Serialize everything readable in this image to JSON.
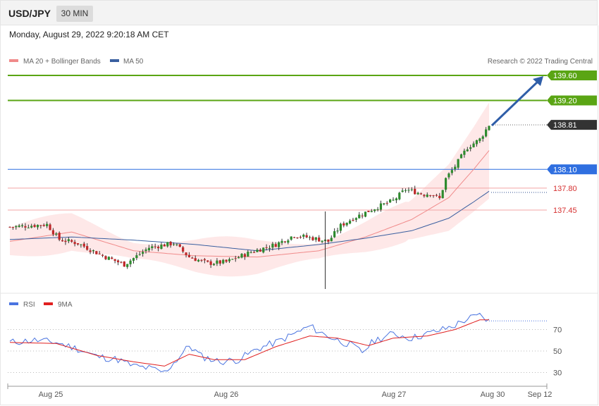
{
  "header": {
    "symbol": "USD/JPY",
    "timeframe": "30 MIN"
  },
  "datetime": "Monday, August 29, 2022 9:20:18 AM CET",
  "copyright": "Research © 2022 Trading Central",
  "colors": {
    "ma20": "#f08a8a",
    "ma50": "#3a5fa0",
    "band": "#fde0e0",
    "up": "#2e8b2e",
    "down": "#c0282a",
    "resistance": "#5aa514",
    "pivot": "#2f6fe0",
    "support": "#e05555",
    "current": "#333333",
    "rsi": "#4a74e0",
    "rsi_ma": "#e02020"
  },
  "chart_data": [
    {
      "type": "candlestick",
      "legend": [
        "MA 20 + Bollinger Bands",
        "MA 50"
      ],
      "x_ticks": [
        "Aug 25",
        "Aug 26",
        "Aug 27",
        "Aug 30",
        "Sep 12"
      ],
      "y_range": [
        136.2,
        139.9
      ],
      "levels": [
        {
          "value": 139.6,
          "label": "139.60",
          "kind": "resistance"
        },
        {
          "value": 139.2,
          "label": "139.20",
          "kind": "resistance"
        },
        {
          "value": 138.81,
          "label": "138.81",
          "kind": "current"
        },
        {
          "value": 138.1,
          "label": "138.10",
          "kind": "pivot"
        },
        {
          "value": 137.8,
          "label": "137.80",
          "kind": "support"
        },
        {
          "value": 137.45,
          "label": "137.45",
          "kind": "support"
        }
      ],
      "close_anchors": [
        [
          0,
          137.18
        ],
        [
          12,
          137.22
        ],
        [
          16,
          136.98
        ],
        [
          22,
          136.92
        ],
        [
          30,
          136.72
        ],
        [
          37,
          136.58
        ],
        [
          45,
          136.85
        ],
        [
          53,
          136.92
        ],
        [
          58,
          136.7
        ],
        [
          64,
          136.6
        ],
        [
          70,
          136.62
        ],
        [
          78,
          136.78
        ],
        [
          86,
          136.9
        ],
        [
          92,
          137.05
        ],
        [
          98,
          137.0
        ],
        [
          103,
          136.95
        ],
        [
          107,
          137.2
        ],
        [
          111,
          137.32
        ],
        [
          118,
          137.48
        ],
        [
          124,
          137.6
        ],
        [
          128,
          137.78
        ],
        [
          134,
          137.7
        ],
        [
          136,
          137.72
        ],
        [
          139,
          137.63
        ],
        [
          141,
          137.95
        ],
        [
          144,
          138.15
        ],
        [
          148,
          138.45
        ],
        [
          152,
          138.58
        ],
        [
          155,
          138.81
        ]
      ],
      "ma20_anchors": [
        [
          0,
          136.95
        ],
        [
          20,
          137.1
        ],
        [
          40,
          136.8
        ],
        [
          60,
          136.72
        ],
        [
          80,
          136.7
        ],
        [
          100,
          136.8
        ],
        [
          115,
          137.02
        ],
        [
          130,
          137.3
        ],
        [
          142,
          137.65
        ],
        [
          150,
          138.1
        ],
        [
          155,
          138.4
        ]
      ],
      "ma50_anchors": [
        [
          0,
          136.98
        ],
        [
          20,
          137.02
        ],
        [
          40,
          136.97
        ],
        [
          60,
          136.9
        ],
        [
          80,
          136.8
        ],
        [
          100,
          136.9
        ],
        [
          115,
          137.0
        ],
        [
          130,
          137.12
        ],
        [
          142,
          137.32
        ],
        [
          150,
          137.58
        ],
        [
          155,
          137.75
        ]
      ],
      "candle_count": 156
    },
    {
      "type": "line",
      "legend": [
        "RSI",
        "9MA"
      ],
      "y_ticks": [
        70,
        50,
        30
      ],
      "y_range": [
        5,
        95
      ],
      "rsi_anchors": [
        [
          0,
          58
        ],
        [
          8,
          60
        ],
        [
          15,
          58
        ],
        [
          22,
          52
        ],
        [
          28,
          45
        ],
        [
          35,
          42
        ],
        [
          40,
          36
        ],
        [
          45,
          34
        ],
        [
          50,
          30
        ],
        [
          54,
          42
        ],
        [
          58,
          55
        ],
        [
          62,
          45
        ],
        [
          68,
          40
        ],
        [
          74,
          42
        ],
        [
          80,
          52
        ],
        [
          86,
          58
        ],
        [
          92,
          66
        ],
        [
          97,
          73
        ],
        [
          102,
          65
        ],
        [
          106,
          60
        ],
        [
          110,
          56
        ],
        [
          114,
          49
        ],
        [
          118,
          60
        ],
        [
          124,
          66
        ],
        [
          130,
          62
        ],
        [
          135,
          66
        ],
        [
          140,
          70
        ],
        [
          144,
          74
        ],
        [
          148,
          80
        ],
        [
          152,
          83
        ],
        [
          155,
          78
        ]
      ],
      "rsi9_anchors": [
        [
          0,
          58
        ],
        [
          15,
          57
        ],
        [
          28,
          46
        ],
        [
          40,
          40
        ],
        [
          50,
          36
        ],
        [
          58,
          47
        ],
        [
          66,
          42
        ],
        [
          76,
          42
        ],
        [
          86,
          54
        ],
        [
          97,
          64
        ],
        [
          106,
          62
        ],
        [
          116,
          55
        ],
        [
          124,
          62
        ],
        [
          135,
          64
        ],
        [
          144,
          70
        ],
        [
          152,
          79
        ],
        [
          155,
          79
        ]
      ]
    }
  ]
}
